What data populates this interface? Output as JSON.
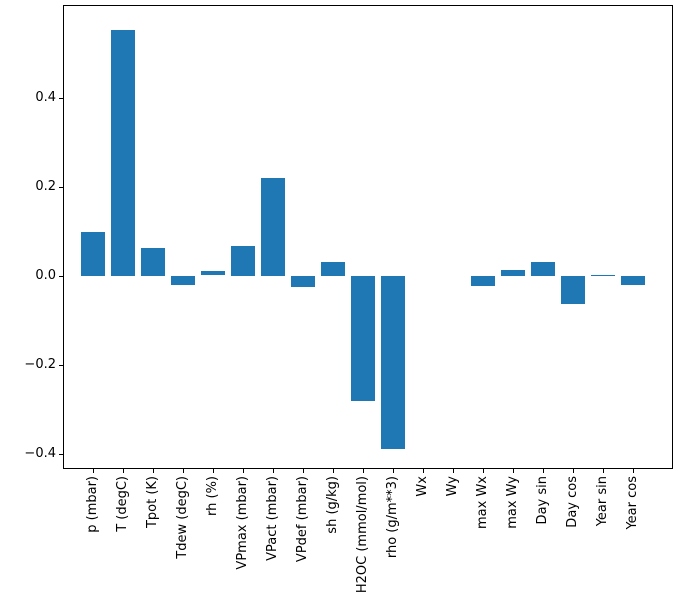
{
  "figure": {
    "background": "#ffffff",
    "spine_color": "#000000",
    "tick_color": "#000000",
    "text_color": "#000000"
  },
  "chart_data": {
    "type": "bar",
    "title": "",
    "xlabel": "",
    "ylabel": "",
    "grid": false,
    "legend": "none",
    "bar_color": "#1f77b4",
    "x_tick_label_rotation_deg": 90,
    "ylim": [
      -0.434,
      0.609
    ],
    "yticks": {
      "values": [
        0.4,
        0.2,
        0.0,
        -0.2,
        -0.4
      ],
      "labels": [
        "0.4",
        "0.2",
        "0.0",
        "−0.2",
        "−0.4"
      ]
    },
    "categories": [
      "p (mbar)",
      "T (degC)",
      "Tpot (K)",
      "Tdew (degC)",
      "rh (%)",
      "VPmax (mbar)",
      "VPact (mbar)",
      "VPdef (mbar)",
      "sh (g/kg)",
      "H2OC (mmol/mol)",
      "rho (g/m**3)",
      "Wx",
      "Wy",
      "max Wx",
      "max Wy",
      "Day sin",
      "Day cos",
      "Year sin",
      "Year cos"
    ],
    "values": [
      0.098,
      0.553,
      0.063,
      -0.02,
      0.01,
      0.068,
      0.221,
      -0.025,
      0.032,
      -0.28,
      -0.39,
      0.0,
      0.0,
      -0.023,
      0.014,
      0.032,
      -0.063,
      0.002,
      -0.021
    ]
  }
}
